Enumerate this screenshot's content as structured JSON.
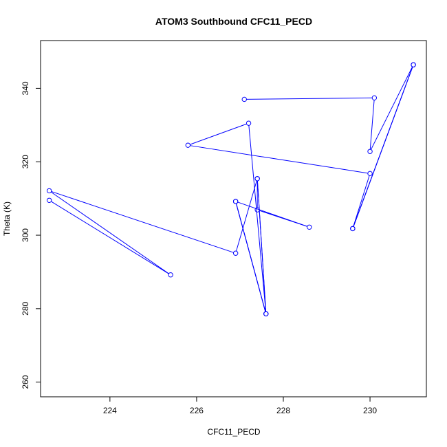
{
  "chart_data": {
    "type": "line",
    "title": "ATOM3 Southbound CFC11_PECD",
    "xlabel": "CFC11_PECD",
    "ylabel": "Theta (K)",
    "xlim": [
      222.4,
      231.3
    ],
    "ylim": [
      256,
      353
    ],
    "x_ticks": [
      224,
      226,
      228,
      230
    ],
    "y_ticks": [
      260,
      280,
      300,
      320,
      340
    ],
    "grid": false,
    "series_color": "#0000ff",
    "markers": "open-circle",
    "points": [
      {
        "x": 227.1,
        "y": 337.0
      },
      {
        "x": 230.1,
        "y": 337.4
      },
      {
        "x": 230.0,
        "y": 322.8
      },
      {
        "x": 231.0,
        "y": 346.4
      },
      {
        "x": 229.6,
        "y": 301.8
      },
      {
        "x": 231.0,
        "y": 346.4
      },
      {
        "x": 229.6,
        "y": 301.8
      },
      {
        "x": 230.0,
        "y": 316.8
      },
      {
        "x": 225.8,
        "y": 324.5
      },
      {
        "x": 227.2,
        "y": 330.5
      },
      {
        "x": 227.6,
        "y": 278.6
      },
      {
        "x": 226.9,
        "y": 309.2
      },
      {
        "x": 227.6,
        "y": 278.6
      },
      {
        "x": 227.4,
        "y": 315.4
      },
      {
        "x": 227.4,
        "y": 306.9
      },
      {
        "x": 228.6,
        "y": 302.2
      },
      {
        "x": 226.9,
        "y": 309.2
      },
      {
        "x": 227.6,
        "y": 278.6
      },
      {
        "x": 227.4,
        "y": 315.4
      },
      {
        "x": 226.9,
        "y": 295.1
      },
      {
        "x": 222.6,
        "y": 312.1
      },
      {
        "x": 225.4,
        "y": 289.2
      },
      {
        "x": 222.6,
        "y": 309.5
      }
    ]
  }
}
